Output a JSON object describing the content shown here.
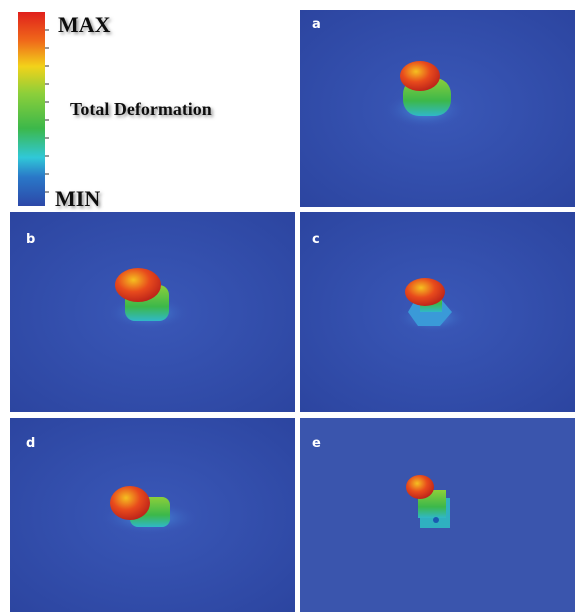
{
  "legend": {
    "max": "MAX",
    "title": "Total Deformation",
    "min": "MIN"
  },
  "panels": [
    {
      "label": "a"
    },
    {
      "label": "b"
    },
    {
      "label": "c"
    },
    {
      "label": "d"
    },
    {
      "label": "e"
    }
  ]
}
